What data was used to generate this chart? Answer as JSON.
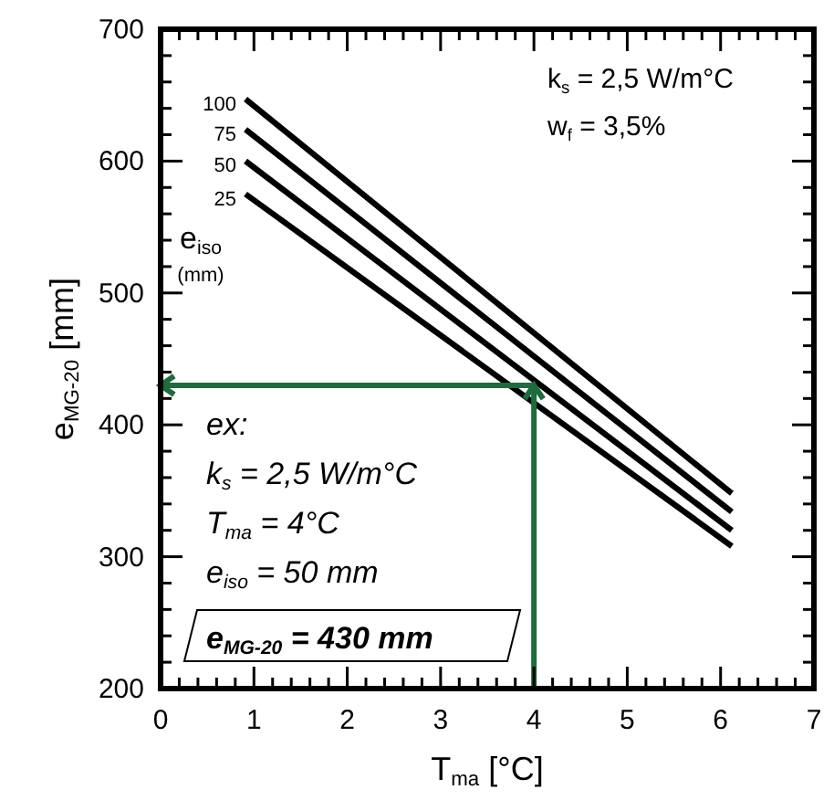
{
  "chart_data": {
    "type": "line",
    "xlabel": "T$_{ma}$ [°C]",
    "ylabel": "e$_{MG-20}$ [mm]",
    "legend_title": "e$_{iso}$\n(mm)",
    "x": [
      0.91,
      6.12
    ],
    "series": [
      {
        "name": "100",
        "color": "#000000",
        "values": [
          647,
          348
        ]
      },
      {
        "name": "75",
        "color": "#000000",
        "values": [
          624,
          334
        ]
      },
      {
        "name": "50",
        "color": "#000000",
        "values": [
          600,
          320
        ]
      },
      {
        "name": "25",
        "color": "#000000",
        "values": [
          575,
          308
        ]
      }
    ],
    "xlim": [
      0,
      7
    ],
    "xticks": [
      0,
      1,
      2,
      3,
      4,
      5,
      6,
      7
    ],
    "ylim": [
      200,
      700
    ],
    "yticks": [
      200,
      300,
      400,
      500,
      600,
      700
    ],
    "ref_lines": [
      {
        "axis": "x",
        "value": 4,
        "color": "#1e6b3c"
      },
      {
        "axis": "y",
        "value": 430,
        "color": "#1e6b3c"
      }
    ],
    "annotations": [
      "k$_{s}$ = 2,5 W/m°C",
      "w$_{f}$ = 3,5%",
      "ex:",
      "k$_{s}$ = 2,5 W/m°C",
      "T$_{ma}$ = 4°C",
      "e$_{iso}$ = 50 mm",
      "e$_{MG-20}$ = 430 mm"
    ],
    "legend": "top left",
    "line_style": "solid",
    "marker": "none",
    "grid": false
  }
}
